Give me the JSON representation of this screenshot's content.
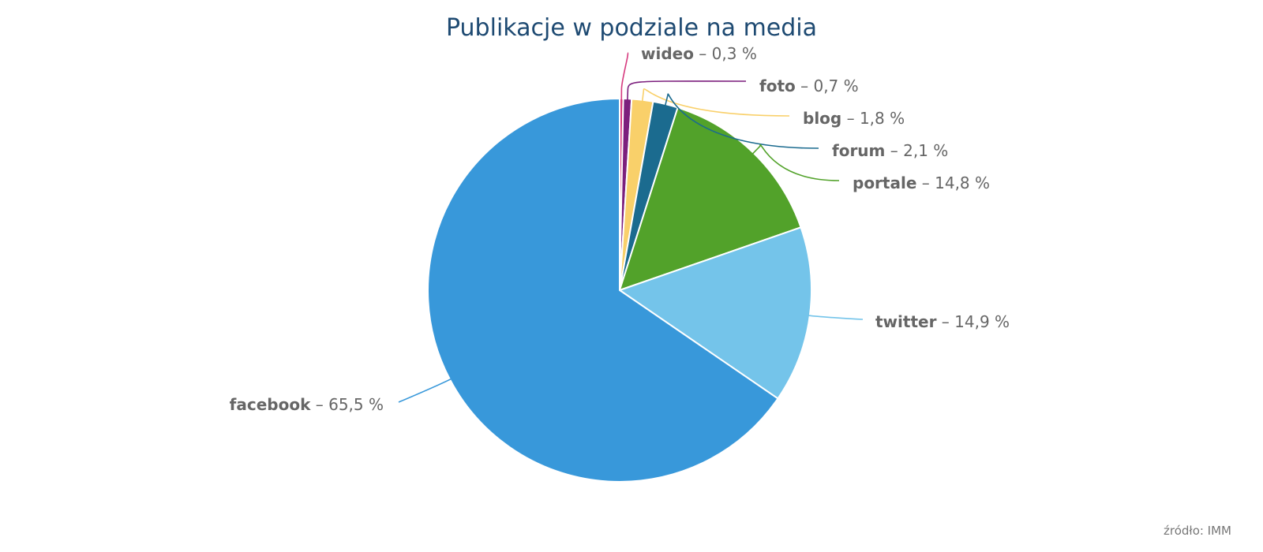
{
  "title": "Publikacje w podziale na media",
  "source": "źródło: IMM",
  "chart_data": {
    "type": "pie",
    "title": "Publikacje w podziale na media",
    "slices": [
      {
        "name": "wideo",
        "value": 0.3,
        "label": "0,3 %",
        "color": "#d63a7e"
      },
      {
        "name": "foto",
        "value": 0.7,
        "label": "0,7 %",
        "color": "#7c1f7d"
      },
      {
        "name": "blog",
        "value": 1.8,
        "label": "1,8 %",
        "color": "#f9d06a"
      },
      {
        "name": "forum",
        "value": 2.1,
        "label": "2,1 %",
        "color": "#1b6b8f"
      },
      {
        "name": "portale",
        "value": 14.8,
        "label": "14,8 %",
        "color": "#52a22a"
      },
      {
        "name": "twitter",
        "value": 14.9,
        "label": "14,9 %",
        "color": "#74c4ea"
      },
      {
        "name": "facebook",
        "value": 65.5,
        "label": "65,5 %",
        "color": "#3898da"
      }
    ]
  }
}
